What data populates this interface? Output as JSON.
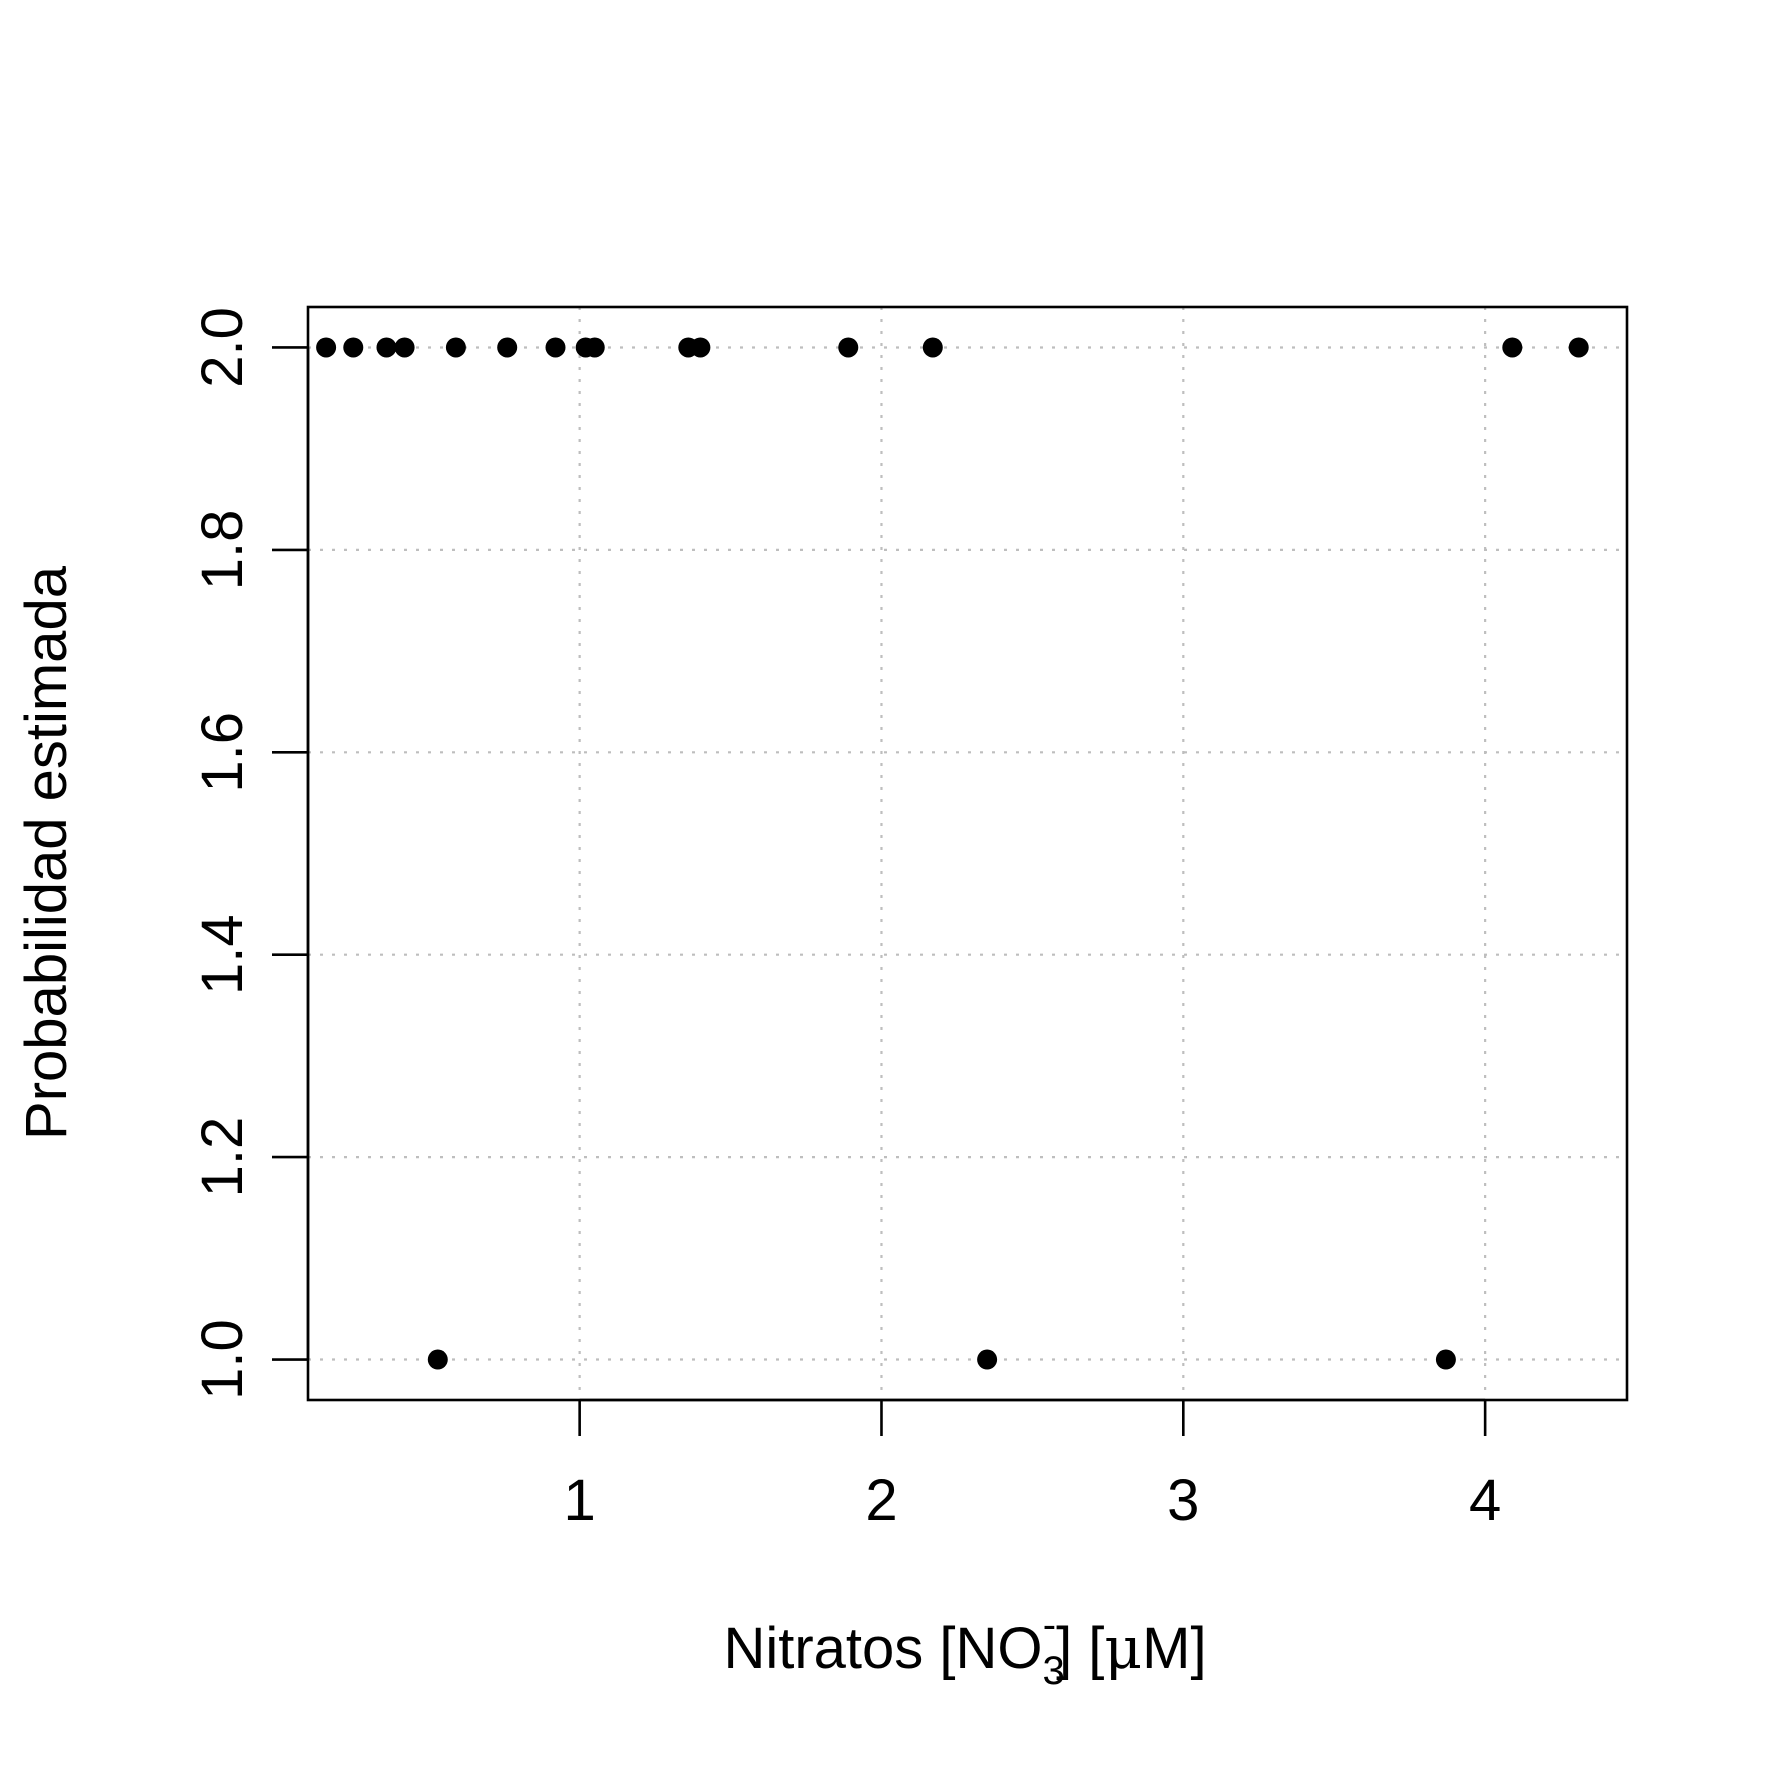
{
  "chart_data": {
    "type": "scatter",
    "title": "",
    "xlabel": {
      "main": "Nitratos [NO",
      "sub": "3",
      "sup": "-",
      "rest": "] [",
      "mu": "μ",
      "unit_end": "M]"
    },
    "ylabel": "Probabilidad estimada",
    "xlim": [
      0.1,
      4.47
    ],
    "ylim": [
      0.96,
      2.04
    ],
    "x_ticks": [
      1,
      2,
      3,
      4
    ],
    "x_tick_labels": [
      "1",
      "2",
      "3",
      "4"
    ],
    "y_ticks": [
      1.0,
      1.2,
      1.4,
      1.6,
      1.8,
      2.0
    ],
    "y_tick_labels": [
      "1.0",
      "1.2",
      "1.4",
      "1.6",
      "1.8",
      "2.0"
    ],
    "grid": true,
    "points": [
      {
        "x": 0.16,
        "y": 2.0
      },
      {
        "x": 0.25,
        "y": 2.0
      },
      {
        "x": 0.36,
        "y": 2.0
      },
      {
        "x": 0.42,
        "y": 2.0
      },
      {
        "x": 0.59,
        "y": 2.0
      },
      {
        "x": 0.76,
        "y": 2.0
      },
      {
        "x": 0.92,
        "y": 2.0
      },
      {
        "x": 1.02,
        "y": 2.0
      },
      {
        "x": 1.05,
        "y": 2.0
      },
      {
        "x": 1.36,
        "y": 2.0
      },
      {
        "x": 1.4,
        "y": 2.0
      },
      {
        "x": 1.89,
        "y": 2.0
      },
      {
        "x": 2.17,
        "y": 2.0
      },
      {
        "x": 4.09,
        "y": 2.0
      },
      {
        "x": 4.31,
        "y": 2.0
      },
      {
        "x": 0.53,
        "y": 1.0
      },
      {
        "x": 2.35,
        "y": 1.0
      },
      {
        "x": 3.87,
        "y": 1.0
      }
    ]
  }
}
